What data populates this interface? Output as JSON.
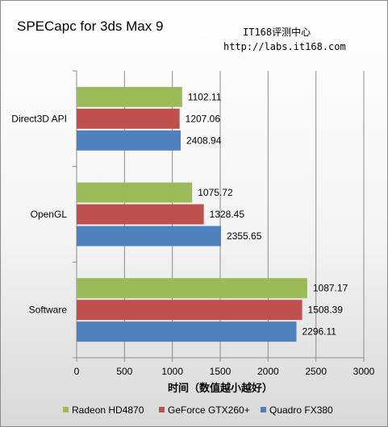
{
  "chart_data": {
    "type": "bar",
    "orientation": "horizontal",
    "title": "SPECapc for 3ds Max 9",
    "categories": [
      "Direct3D API",
      "OpenGL",
      "Software"
    ],
    "series": [
      {
        "name": "Radeon HD4870",
        "color": "#9bbb59",
        "values": [
          1102.11,
          1207.06,
          2408.94
        ]
      },
      {
        "name": "GeForce GTX260+",
        "color": "#c0504d",
        "values": [
          1075.72,
          1328.45,
          2355.65
        ]
      },
      {
        "name": "Quadro FX380",
        "color": "#4f81bd",
        "values": [
          1087.17,
          1508.39,
          2296.11
        ]
      }
    ],
    "value_labels": [
      [
        "1102.11",
        "1207.06",
        "2408.94"
      ],
      [
        "1075.72",
        "1328.45",
        "2355.65"
      ],
      [
        "1087.17",
        "1508.39",
        "2296.11"
      ]
    ],
    "xlabel": "时间（数值越小越好）",
    "ylabel": "",
    "xlim": [
      0,
      3000
    ],
    "xticks": [
      0,
      500,
      1000,
      1500,
      2000,
      2500,
      3000
    ],
    "xtick_labels": [
      "0",
      "500",
      "1000",
      "1500",
      "2000",
      "2500",
      "3000"
    ],
    "grid": "vertical",
    "legend_position": "bottom"
  },
  "watermark": {
    "line1": "IT168评测中心",
    "line2": "http://labs.it168.com"
  }
}
